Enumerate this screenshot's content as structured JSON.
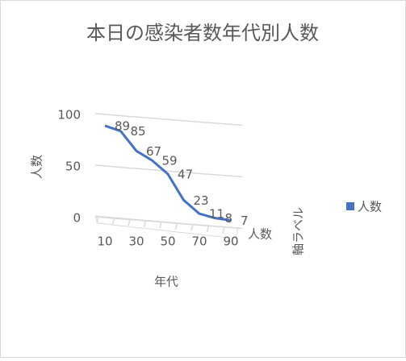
{
  "chart_data": {
    "type": "line3d",
    "title": "本日の感染者数年代別人数",
    "y_label": "人数",
    "x_label": "年代",
    "depth_label": "軸ラベル",
    "depth_categories": [
      "人数"
    ],
    "categories": [
      "10",
      null,
      "30",
      null,
      "50",
      null,
      "70",
      null,
      "90"
    ],
    "series": [
      {
        "name": "人数",
        "color": "#4472c4",
        "values": [
          89,
          85,
          67,
          59,
          47,
          23,
          11,
          8,
          7
        ]
      }
    ],
    "ylim": [
      0,
      100
    ],
    "yticks": [
      0,
      50,
      100
    ],
    "grid": true,
    "legend": "right"
  }
}
